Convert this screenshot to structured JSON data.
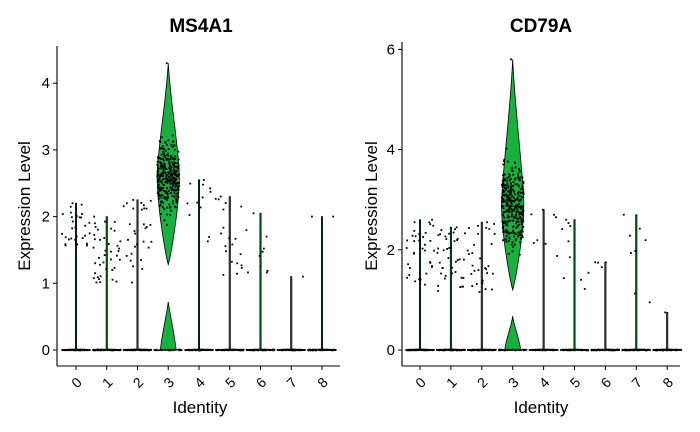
{
  "figure": {
    "background": "#ffffff",
    "violin_fill": "#17b13f",
    "point_color": "#000000"
  },
  "chart_data": [
    {
      "type": "violin",
      "title": "MS4A1",
      "xlabel": "Identity",
      "ylabel": "Expression Level",
      "categories": [
        "0",
        "1",
        "2",
        "3",
        "4",
        "5",
        "6",
        "7",
        "8"
      ],
      "y_ticks": [
        0,
        1,
        2,
        3,
        4
      ],
      "ylim": [
        -0.2,
        4.5
      ],
      "max_expression": [
        2.2,
        2.0,
        2.25,
        4.3,
        2.55,
        2.3,
        2.05,
        1.1,
        2.0
      ],
      "expressing_range": [
        [
          1.5,
          2.2
        ],
        [
          1.0,
          2.0
        ],
        [
          1.0,
          2.25
        ],
        [
          1.6,
          4.3
        ],
        [
          1.6,
          2.55
        ],
        [
          1.1,
          2.3
        ],
        [
          1.1,
          2.05
        ],
        [
          1.1,
          1.1
        ],
        [
          2.0,
          2.0
        ]
      ],
      "expressing_cells": [
        30,
        40,
        30,
        320,
        12,
        20,
        10,
        1,
        2
      ],
      "violin_bulge": {
        "cluster": "3",
        "center": 2.6,
        "half_width_fraction": 0.36
      }
    },
    {
      "type": "violin",
      "title": "CD79A",
      "xlabel": "Identity",
      "ylabel": "Expression Level",
      "categories": [
        "0",
        "1",
        "2",
        "3",
        "4",
        "5",
        "6",
        "7",
        "8"
      ],
      "y_ticks": [
        0,
        2,
        4,
        6
      ],
      "ylim": [
        -0.3,
        6.1
      ],
      "max_expression": [
        2.6,
        2.45,
        2.55,
        5.8,
        2.8,
        2.6,
        1.75,
        2.7,
        0.75
      ],
      "expressing_range": [
        [
          1.3,
          2.6
        ],
        [
          1.1,
          2.45
        ],
        [
          1.1,
          2.55
        ],
        [
          1.5,
          5.8
        ],
        [
          1.7,
          2.8
        ],
        [
          1.0,
          2.6
        ],
        [
          1.6,
          1.75
        ],
        [
          0.9,
          2.7
        ],
        [
          0.75,
          0.75
        ]
      ],
      "expressing_cells": [
        35,
        40,
        30,
        330,
        8,
        10,
        4,
        8,
        1
      ],
      "violin_bulge": {
        "cluster": "3",
        "center": 2.9,
        "half_width_fraction": 0.36
      }
    }
  ]
}
